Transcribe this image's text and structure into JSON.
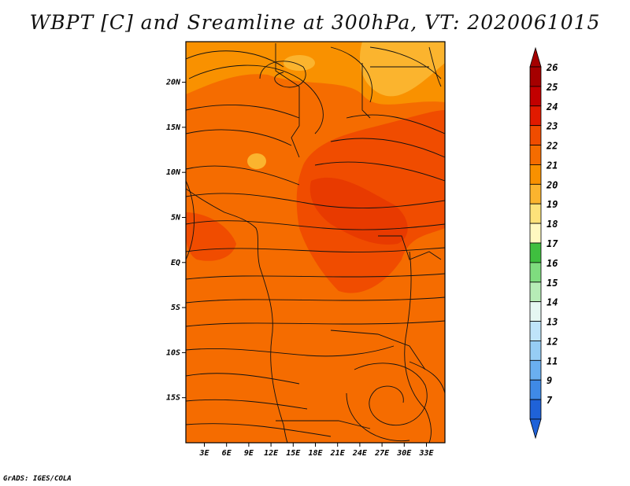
{
  "title": "WBPT [C] and Sreamline at 300hPa, VT: 2020061015",
  "credit": "GrADS: IGES/COLA",
  "map": {
    "lat_range": [
      -20,
      24.5
    ],
    "lon_range": [
      0.5,
      35.5
    ],
    "lat_ticks": [
      {
        "value": 20,
        "label": "20N"
      },
      {
        "value": 15,
        "label": "15N"
      },
      {
        "value": 10,
        "label": "10N"
      },
      {
        "value": 5,
        "label": "5N"
      },
      {
        "value": 0,
        "label": "EQ"
      },
      {
        "value": -5,
        "label": "5S"
      },
      {
        "value": -10,
        "label": "10S"
      },
      {
        "value": -15,
        "label": "15S"
      }
    ],
    "lon_ticks": [
      {
        "value": 3,
        "label": "3E"
      },
      {
        "value": 6,
        "label": "6E"
      },
      {
        "value": 9,
        "label": "9E"
      },
      {
        "value": 12,
        "label": "12E"
      },
      {
        "value": 15,
        "label": "15E"
      },
      {
        "value": 18,
        "label": "18E"
      },
      {
        "value": 21,
        "label": "21E"
      },
      {
        "value": 24,
        "label": "24E"
      },
      {
        "value": 27,
        "label": "27E"
      },
      {
        "value": 30,
        "label": "30E"
      },
      {
        "value": 33,
        "label": "33E"
      }
    ]
  },
  "colorbar": {
    "levels": [
      {
        "label": "26",
        "color": "#a50000"
      },
      {
        "label": "25",
        "color": "#c20000"
      },
      {
        "label": "24",
        "color": "#e11a00"
      },
      {
        "label": "23",
        "color": "#f04c00"
      },
      {
        "label": "22",
        "color": "#f56c00"
      },
      {
        "label": "21",
        "color": "#f99100"
      },
      {
        "label": "20",
        "color": "#fbb42e"
      },
      {
        "label": "19",
        "color": "#fde27a"
      },
      {
        "label": "18",
        "color": "#fff9c0"
      },
      {
        "label": "17",
        "color": "#3fbf3f"
      },
      {
        "label": "16",
        "color": "#7fdc7f"
      },
      {
        "label": "15",
        "color": "#b6ecb6"
      },
      {
        "label": "14",
        "color": "#e5f7f2"
      },
      {
        "label": "13",
        "color": "#bfe4fa"
      },
      {
        "label": "12",
        "color": "#96cdf5"
      },
      {
        "label": "11",
        "color": "#6aaff0"
      },
      {
        "label": "9",
        "color": "#3f8ae6"
      },
      {
        "label": "7",
        "color": "#1f62d8"
      }
    ]
  }
}
